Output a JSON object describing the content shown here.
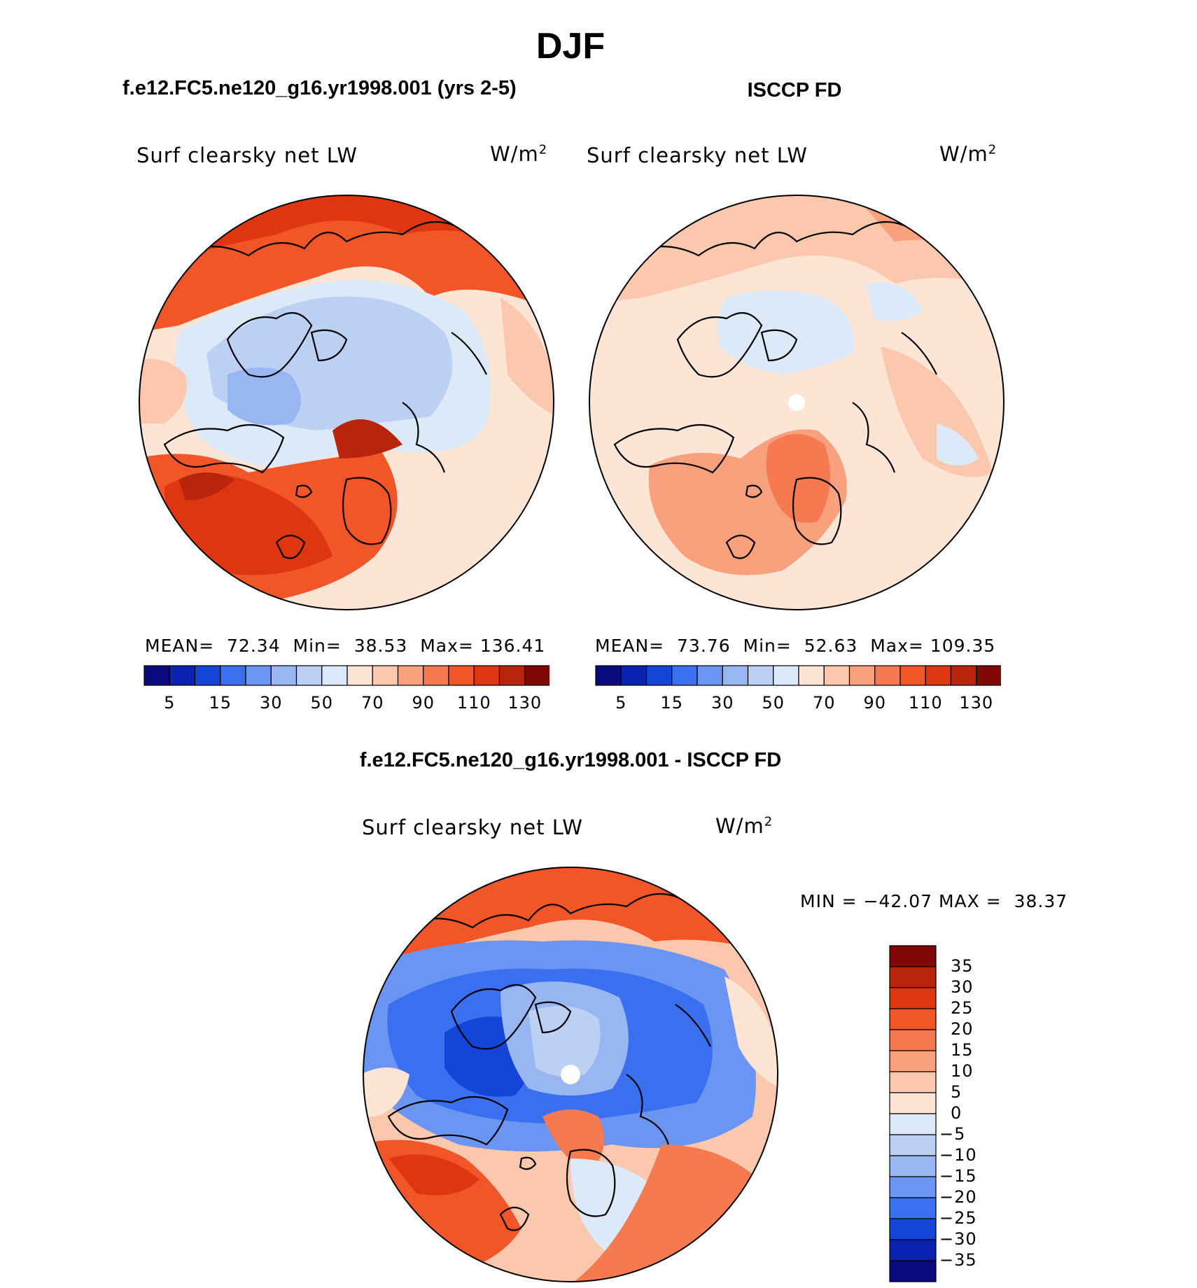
{
  "title": "DJF",
  "panels": [
    {
      "subtitle": "f.e12.FC5.ne120_g16.yr1998.001 (yrs 2-5)",
      "variable": "Surf clearsky net LW",
      "units_base": "W/m",
      "units_exp": "2",
      "stats": {
        "mean_label": "MEAN=",
        "mean": "72.34",
        "min_label": "Min=",
        "min": "38.53",
        "max_label": "Max=",
        "max": "136.41"
      }
    },
    {
      "subtitle": "ISCCP FD",
      "variable": "Surf clearsky net LW",
      "units_base": "W/m",
      "units_exp": "2",
      "stats": {
        "mean_label": "MEAN=",
        "mean": "73.76",
        "min_label": "Min=",
        "min": "52.63",
        "max_label": "Max=",
        "max": "109.35"
      }
    }
  ],
  "diff_panel": {
    "subtitle": "f.e12.FC5.ne120_g16.yr1998.001 - ISCCP FD",
    "variable": "Surf clearsky net LW",
    "units_base": "W/m",
    "units_exp": "2",
    "minmax": {
      "min_label": "MIN =",
      "min": "−42.07",
      "max_label": "MAX =",
      "max": "38.37"
    }
  },
  "colorbar_abs": {
    "colors": [
      "#0a0a80",
      "#0b22b0",
      "#1545d8",
      "#3a6ff0",
      "#6b95f2",
      "#98b6f2",
      "#bcd0f4",
      "#dce9f8",
      "#fde5d6",
      "#fcc8ad",
      "#f9a07c",
      "#f67a50",
      "#f25628",
      "#de3710",
      "#b8240c",
      "#820808"
    ],
    "tick_labels": [
      "5",
      "15",
      "30",
      "50",
      "70",
      "90",
      "110",
      "130"
    ]
  },
  "colorbar_diff": {
    "colors": [
      "#0a0a80",
      "#0b22b0",
      "#1545d8",
      "#3a6ff0",
      "#6b95f2",
      "#98b6f2",
      "#bcd0f4",
      "#dce9f8",
      "#fde5d6",
      "#fcc8ad",
      "#f9a07c",
      "#f67a50",
      "#f25628",
      "#de3710",
      "#b8240c",
      "#820808"
    ],
    "tick_labels": [
      "35",
      "30",
      "25",
      "20",
      "15",
      "10",
      "5",
      "0",
      "−5",
      "−10",
      "−15",
      "−20",
      "−25",
      "−30",
      "−35"
    ]
  }
}
